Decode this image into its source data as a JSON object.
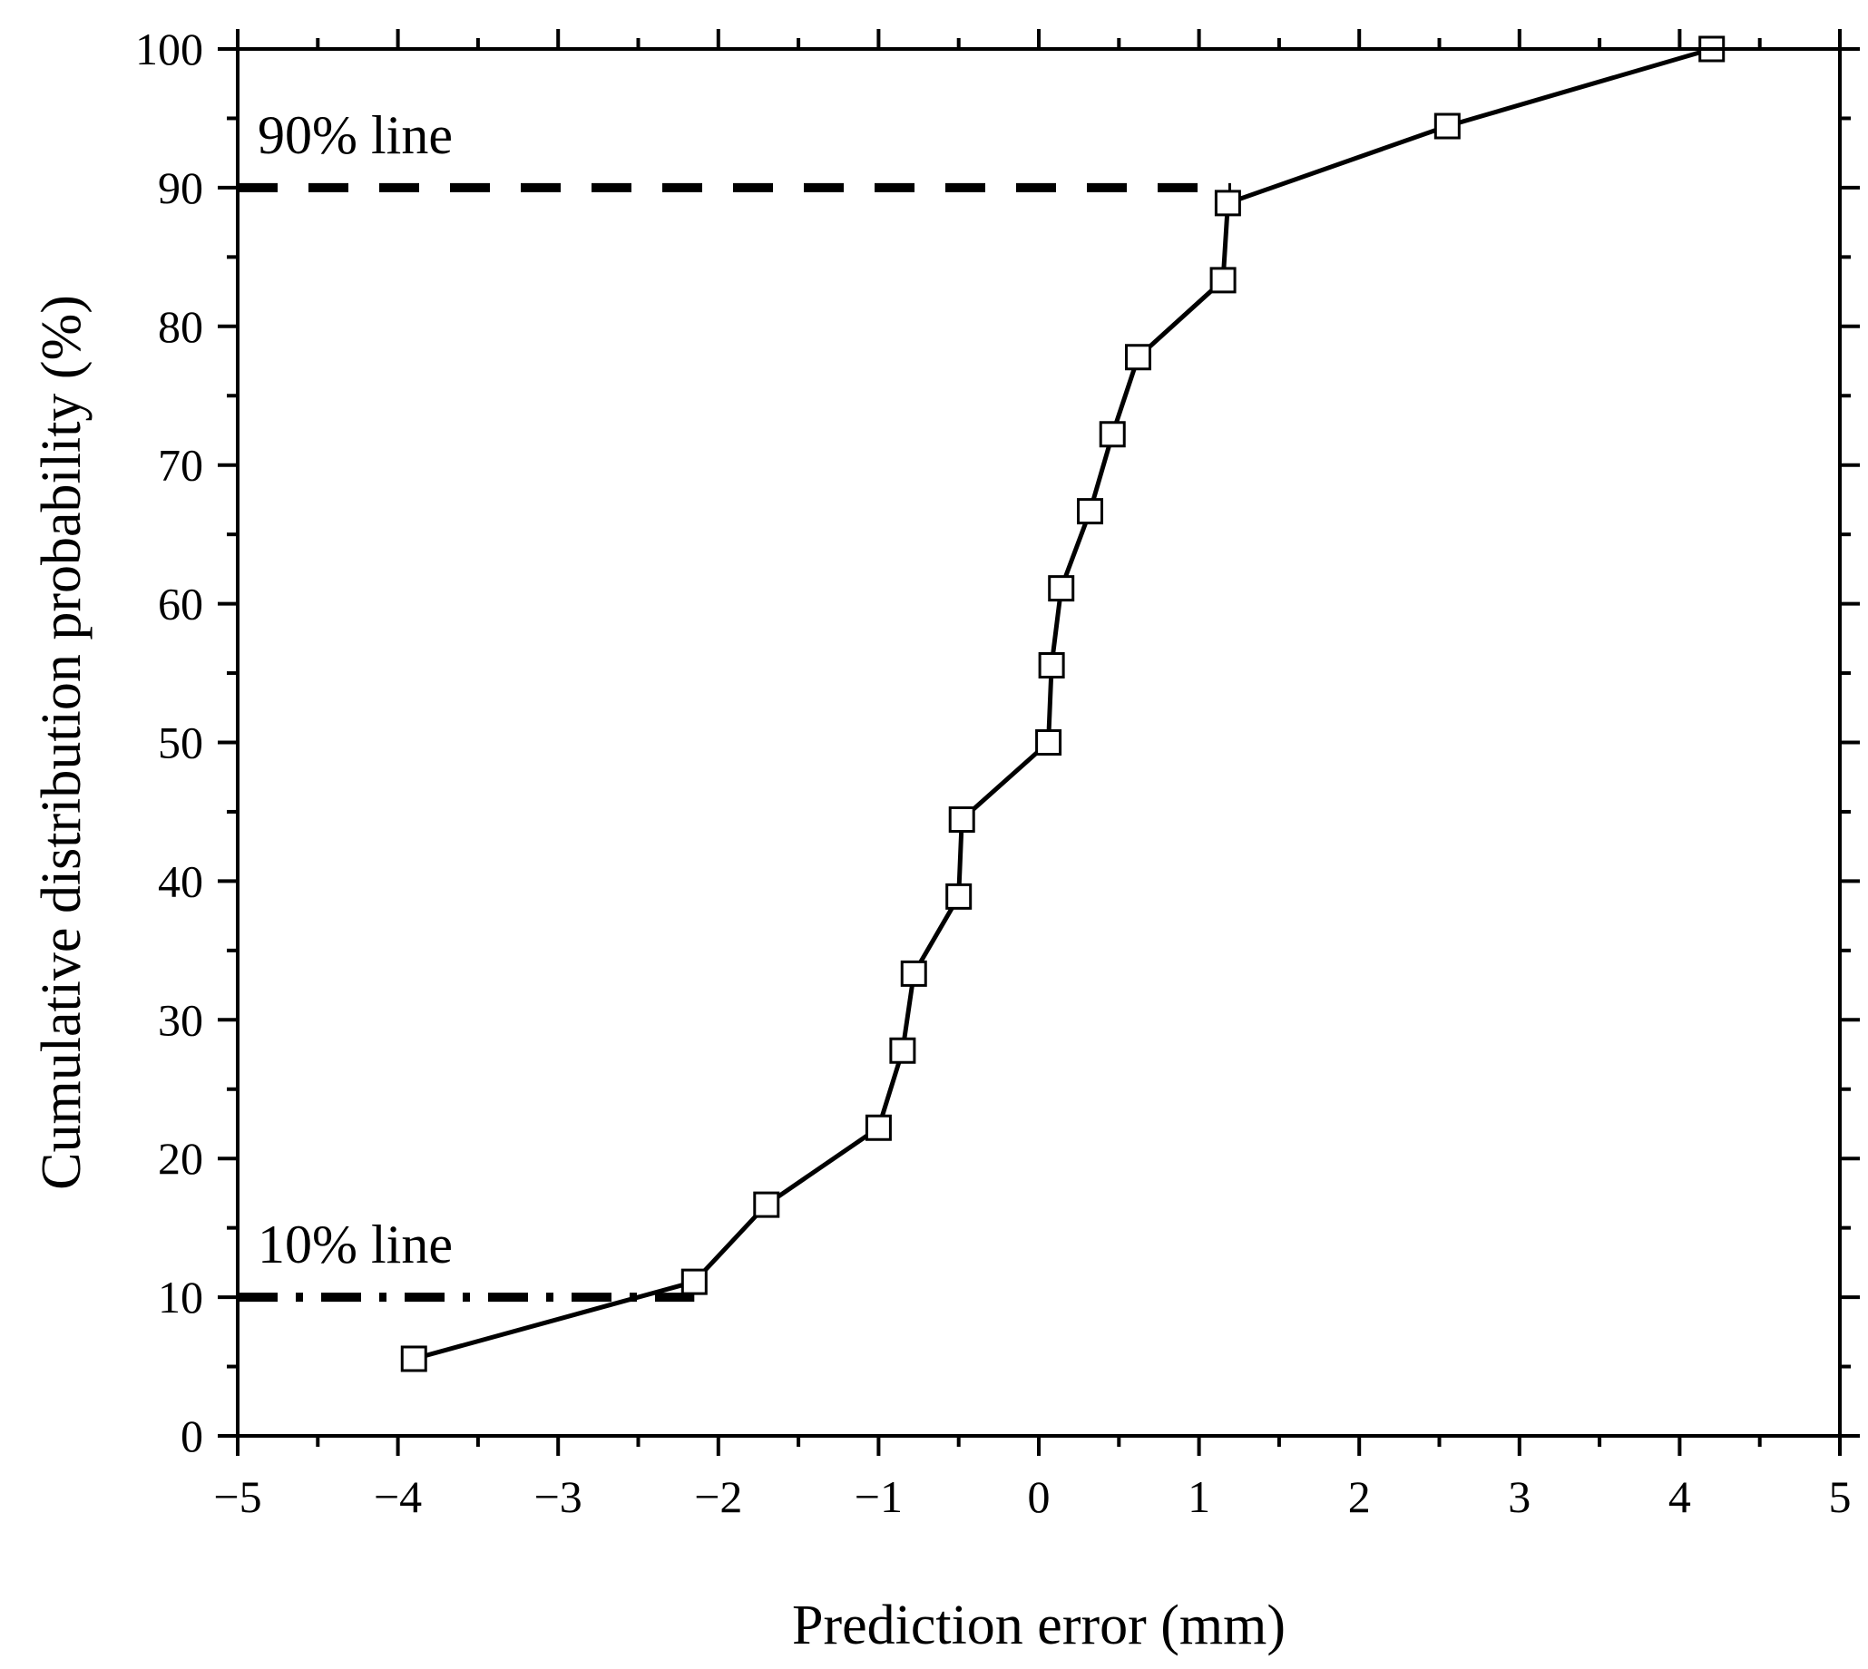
{
  "chart_data": {
    "type": "line",
    "title": "",
    "xlabel": "Prediction error (mm)",
    "ylabel": "Cumulative distribution probability (%)",
    "xlim": [
      -5,
      5
    ],
    "ylim": [
      0,
      100
    ],
    "x_ticks": [
      -5,
      -4,
      -3,
      -2,
      -1,
      0,
      1,
      2,
      3,
      4,
      5
    ],
    "x_tick_labels": [
      "−5",
      "−4",
      "−3",
      "−2",
      "−1",
      "0",
      "1",
      "2",
      "3",
      "4",
      "5"
    ],
    "y_ticks": [
      0,
      10,
      20,
      30,
      40,
      50,
      60,
      70,
      80,
      90,
      100
    ],
    "y_tick_labels": [
      "0",
      "10",
      "20",
      "30",
      "40",
      "50",
      "60",
      "70",
      "80",
      "90",
      "100"
    ],
    "grid": false,
    "marker": "open-square",
    "series": [
      {
        "x": [
          -3.9,
          -2.15,
          -1.7,
          -1.0,
          -0.85,
          -0.78,
          -0.5,
          -0.48,
          0.06,
          0.08,
          0.14,
          0.32,
          0.46,
          0.62,
          1.15,
          1.18,
          2.55,
          4.2
        ],
        "y": [
          5.56,
          11.11,
          16.67,
          22.22,
          27.78,
          33.33,
          38.89,
          44.44,
          50.0,
          55.56,
          61.11,
          66.67,
          72.22,
          77.78,
          83.33,
          88.89,
          94.44,
          100.0
        ]
      }
    ],
    "reference_lines": [
      {
        "label": "90% line",
        "y": 90,
        "x_range": [
          -5,
          1.2
        ],
        "style": "dashed"
      },
      {
        "label": "10% line",
        "y": 10,
        "x_range": [
          -5,
          -2.15
        ],
        "style": "dash-dot"
      }
    ],
    "color": "#000000"
  }
}
